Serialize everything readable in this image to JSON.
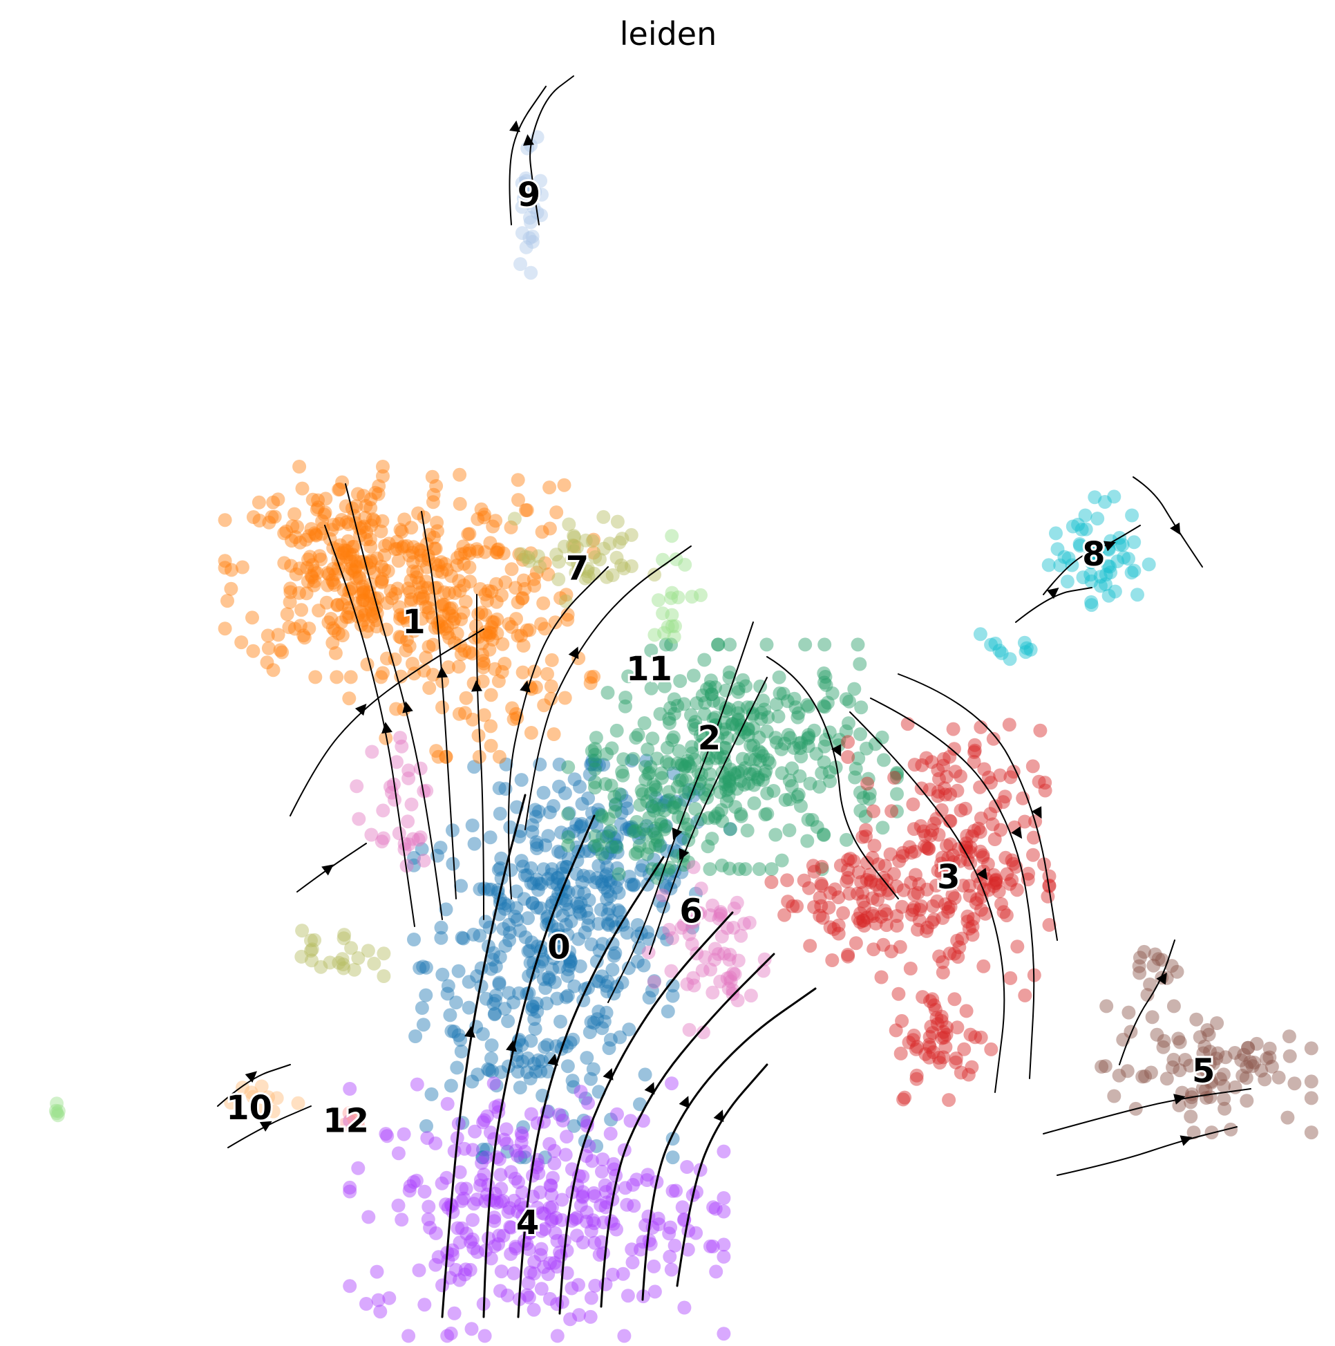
{
  "chart_data": {
    "type": "scatter",
    "subtype": "embedding with velocity streamlines",
    "title": "leiden",
    "xlabel": "",
    "ylabel": "",
    "axes_visible": false,
    "grid": false,
    "legend": "on data",
    "xlim": [
      0,
      100
    ],
    "ylim": [
      0,
      100
    ],
    "clusters": [
      {
        "name": "0",
        "color": "#1f77b4",
        "label_pos": [
          41.7,
          29.9
        ],
        "regions": [
          {
            "c": [
              40.5,
              29
            ],
            "r": [
              9,
              14
            ],
            "n": 360
          },
          {
            "c": [
              46,
              37
            ],
            "r": [
              8,
              7
            ],
            "n": 140
          }
        ]
      },
      {
        "name": "1",
        "color": "#ff7f0e",
        "label_pos": [
          30.6,
          55.4
        ],
        "regions": [
          {
            "c": [
              25.5,
              59.5
            ],
            "r": [
              8.5,
              7.5
            ],
            "n": 280
          },
          {
            "c": [
              35,
              56
            ],
            "r": [
              8.5,
              10
            ],
            "n": 240
          }
        ]
      },
      {
        "name": "2",
        "color": "#279e68",
        "label_pos": [
          53.2,
          46.3
        ],
        "regions": [
          {
            "c": [
              56,
              45
            ],
            "r": [
              10.5,
              8
            ],
            "n": 320
          },
          {
            "c": [
              49,
              41
            ],
            "r": [
              6,
              5
            ],
            "n": 90
          }
        ]
      },
      {
        "name": "3",
        "color": "#d62728",
        "label_pos": [
          71.5,
          35.4
        ],
        "regions": [
          {
            "c": [
              71.5,
              37
            ],
            "r": [
              7,
              10
            ],
            "n": 230
          },
          {
            "c": [
              64,
              34
            ],
            "r": [
              5.5,
              4.5
            ],
            "n": 70
          },
          {
            "c": [
              71,
              22.5
            ],
            "r": [
              3.5,
              4
            ],
            "n": 50
          }
        ]
      },
      {
        "name": "4",
        "color": "#aa40fc",
        "label_pos": [
          39.3,
          8.3
        ],
        "regions": [
          {
            "c": [
              40,
              9.5
            ],
            "r": [
              13,
              9
            ],
            "n": 330
          }
        ]
      },
      {
        "name": "5",
        "color": "#8c564b",
        "label_pos": [
          91.0,
          20.2
        ],
        "regions": [
          {
            "c": [
              91,
              20.5
            ],
            "r": [
              7.5,
              4.5
            ],
            "n": 90
          },
          {
            "c": [
              86.5,
              28.5
            ],
            "r": [
              2.5,
              2
            ],
            "n": 14
          }
        ]
      },
      {
        "name": "6",
        "color": "#e377c2",
        "label_pos": [
          51.8,
          32.7
        ],
        "regions": [
          {
            "c": [
              53.5,
              30
            ],
            "r": [
              4.5,
              6
            ],
            "n": 60
          },
          {
            "c": [
              29,
              41
            ],
            "r": [
              3,
              5
            ],
            "n": 30
          }
        ]
      },
      {
        "name": "7",
        "color": "#b5bd61",
        "label_pos": [
          43.1,
          59.6
        ],
        "regions": [
          {
            "c": [
              43.5,
              60.5
            ],
            "r": [
              5,
              3
            ],
            "n": 45
          },
          {
            "c": [
              25,
              29.5
            ],
            "r": [
              3,
              2
            ],
            "n": 22
          }
        ]
      },
      {
        "name": "8",
        "color": "#17becf",
        "label_pos": [
          82.6,
          60.7
        ],
        "regions": [
          {
            "c": [
              83,
              61
            ],
            "r": [
              3.5,
              4
            ],
            "n": 55
          },
          {
            "c": [
              76,
              53.5
            ],
            "r": [
              3,
              1.5
            ],
            "n": 10
          }
        ]
      },
      {
        "name": "9",
        "color": "#aec7e8",
        "label_pos": [
          39.4,
          88.9
        ],
        "regions": [
          {
            "c": [
              39.5,
              89
            ],
            "r": [
              1,
              5.5
            ],
            "n": 30
          }
        ]
      },
      {
        "name": "10",
        "color": "#ffbb78",
        "label_pos": [
          18.0,
          17.3
        ],
        "regions": [
          {
            "c": [
              19,
              18
            ],
            "r": [
              2.5,
              1.2
            ],
            "n": 10
          }
        ]
      },
      {
        "name": "11",
        "color": "#98df8a",
        "label_pos": [
          48.6,
          51.7
        ],
        "regions": [
          {
            "c": [
              51,
              58
            ],
            "r": [
              2.5,
              4
            ],
            "n": 18
          },
          {
            "c": [
              3,
              17.5
            ],
            "r": [
              1,
              1
            ],
            "n": 5
          }
        ]
      },
      {
        "name": "12",
        "color": "#ff9896",
        "label_pos": [
          25.4,
          16.3
        ],
        "regions": [
          {
            "c": [
              26,
              16.5
            ],
            "r": [
              1.5,
              0.7
            ],
            "n": 5
          }
        ]
      }
    ]
  }
}
